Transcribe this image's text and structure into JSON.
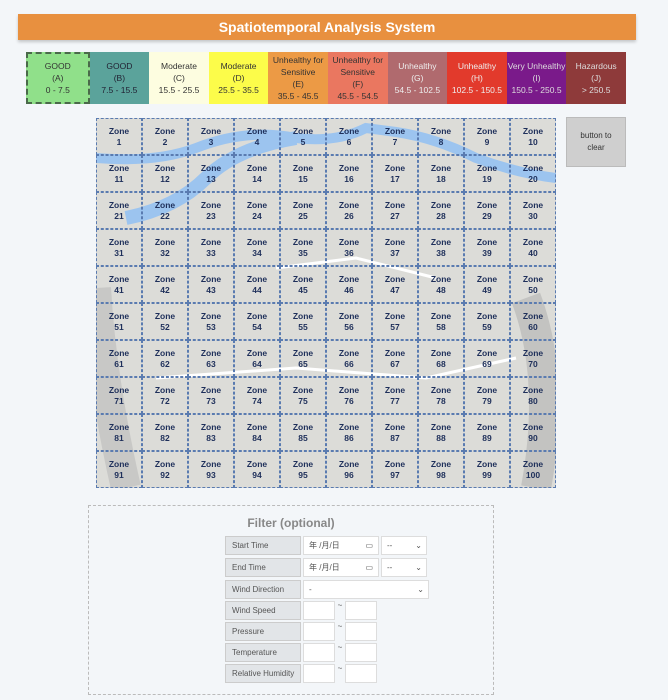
{
  "header": {
    "title": "Spatiotemporal Analysis System"
  },
  "legend": [
    {
      "label": "GOOD",
      "grade": "(A)",
      "range": "0 - 7.5",
      "color": "#90e08a",
      "text": "#333"
    },
    {
      "label": "GOOD",
      "grade": "(B)",
      "range": "7.5 - 15.5",
      "color": "#5ba39b",
      "text": "#223"
    },
    {
      "label": "Moderate",
      "grade": "(C)",
      "range": "15.5 - 25.5",
      "color": "#fdfde0",
      "text": "#333"
    },
    {
      "label": "Moderate",
      "grade": "(D)",
      "range": "25.5 - 35.5",
      "color": "#fcfc4a",
      "text": "#333"
    },
    {
      "label": "Unhealthy for Sensitive",
      "grade": "(E)",
      "range": "35.5 - 45.5",
      "color": "#ec9a45",
      "text": "#333"
    },
    {
      "label": "Unhealthy for Sensitive",
      "grade": "(F)",
      "range": "45.5 - 54.5",
      "color": "#ea7760",
      "text": "#333"
    },
    {
      "label": "Unhealthy",
      "grade": "(G)",
      "range": "54.5 - 102.5",
      "color": "#b06a6e",
      "text": "#eee"
    },
    {
      "label": "Unhealthy",
      "grade": "(H)",
      "range": "102.5 - 150.5",
      "color": "#e23a2c",
      "text": "#eee"
    },
    {
      "label": "Very Unhealthy",
      "grade": "(I)",
      "range": "150.5 - 250.5",
      "color": "#7a1a8a",
      "text": "#ddd"
    },
    {
      "label": "Hazardous",
      "grade": "(J)",
      "range": "> 250.5",
      "color": "#8e3a3a",
      "text": "#ddd"
    }
  ],
  "zone_prefix": "Zone",
  "zones": [
    1,
    2,
    3,
    4,
    5,
    6,
    7,
    8,
    9,
    10,
    11,
    12,
    13,
    14,
    15,
    16,
    17,
    18,
    19,
    20,
    21,
    22,
    23,
    24,
    25,
    26,
    27,
    28,
    29,
    30,
    31,
    32,
    33,
    34,
    35,
    36,
    37,
    38,
    39,
    40,
    41,
    42,
    43,
    44,
    45,
    46,
    47,
    48,
    49,
    50,
    51,
    52,
    53,
    54,
    55,
    56,
    57,
    58,
    59,
    60,
    61,
    62,
    63,
    64,
    65,
    66,
    67,
    68,
    69,
    70,
    71,
    72,
    73,
    74,
    75,
    76,
    77,
    78,
    79,
    80,
    81,
    82,
    83,
    84,
    85,
    86,
    87,
    88,
    89,
    90,
    91,
    92,
    93,
    94,
    95,
    96,
    97,
    98,
    99,
    100
  ],
  "clear_button": "button to clear",
  "filter": {
    "title": "Filter (optional)",
    "start_time": "Start Time",
    "end_time": "End Time",
    "date_placeholder": "年 /月/日",
    "time_placeholder": "--",
    "wind_direction": "Wind Direction",
    "wind_direction_value": "-",
    "wind_speed": "Wind Speed",
    "pressure": "Pressure",
    "temperature": "Temperature",
    "relative_humidity": "Relative Humidity",
    "range_sep": "~"
  }
}
